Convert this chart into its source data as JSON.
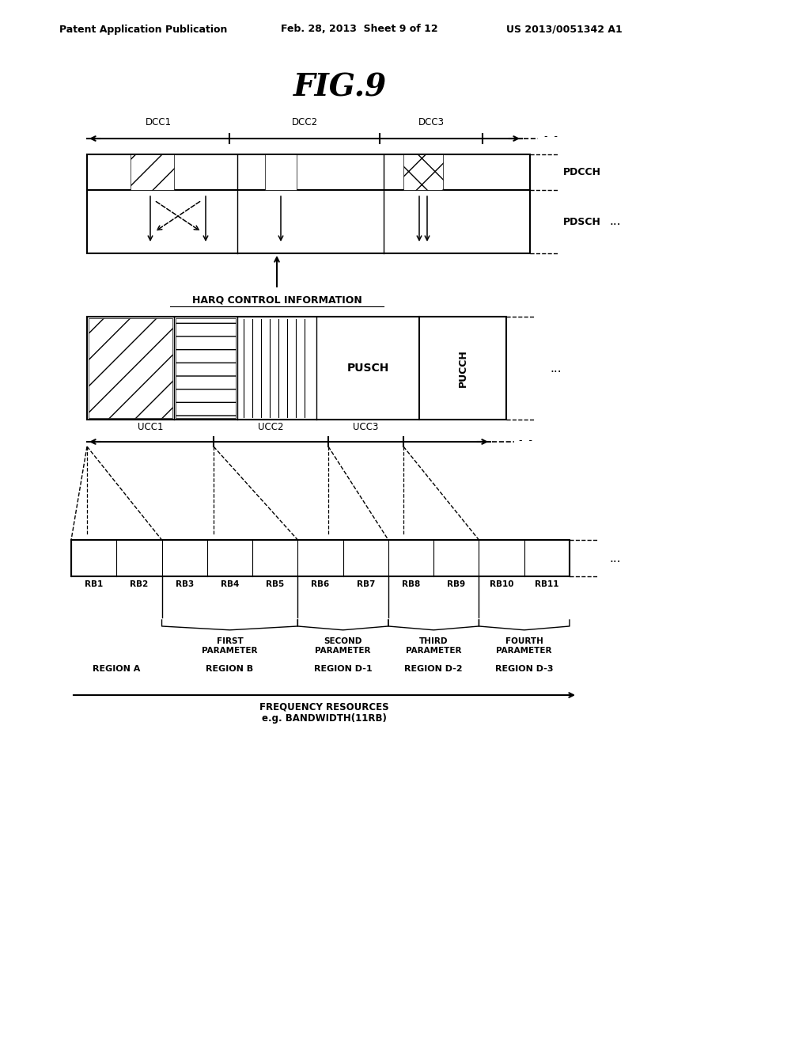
{
  "title": "FIG.9",
  "header_left": "Patent Application Publication",
  "header_mid": "Feb. 28, 2013  Sheet 9 of 12",
  "header_right": "US 2013/0051342 A1",
  "background": "#ffffff",
  "dcc_labels": [
    "DCC1",
    "DCC2",
    "DCC3"
  ],
  "ucc_labels": [
    "UCC1",
    "UCC2",
    "UCC3"
  ],
  "pdcch_label": "PDCCH",
  "pdsch_label": "PDSCH",
  "pusch_label": "PUSCH",
  "pucch_label": "PUCCH",
  "harq_label": "HARQ CONTROL INFORMATION",
  "freq_label": "FREQUENCY RESOURCES\ne.g. BANDWIDTH(11RB)",
  "rb_labels": [
    "RB1",
    "RB2",
    "RB3",
    "RB4",
    "RB5",
    "RB6",
    "RB7",
    "RB8",
    "RB9",
    "RB10",
    "RB11"
  ],
  "region_labels": [
    "REGION A",
    "REGION B",
    "REGION D-1",
    "REGION D-2",
    "REGION D-3"
  ],
  "param_labels": [
    "FIRST\nPARAMETER",
    "SECOND\nPARAMETER",
    "THIRD\nPARAMETER",
    "FOURTH\nPARAMETER"
  ]
}
